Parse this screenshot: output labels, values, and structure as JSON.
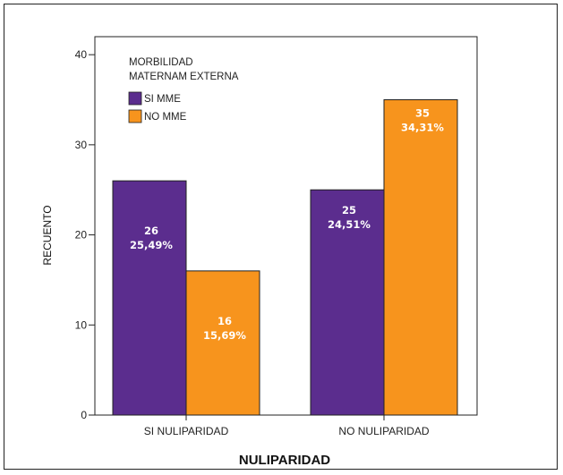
{
  "chart_data": {
    "type": "bar",
    "xlabel": "NULIPARIDAD",
    "ylabel": "RECUENTO",
    "ylim": [
      0,
      40
    ],
    "yticks": [
      0,
      10,
      20,
      30,
      40
    ],
    "grid": false,
    "categories": [
      "SI NULIPARIDAD",
      "NO NULIPARIDAD"
    ],
    "legend": {
      "title_line1": "MORBILIDAD",
      "title_line2": "MATERNAM EXTERNA",
      "placement": "top-left"
    },
    "series": [
      {
        "name": "SI MME",
        "color": "#5b2d8e",
        "values": [
          26,
          25
        ],
        "labels": [
          "26",
          "25"
        ],
        "percent_labels": [
          "25,49%",
          "24,51%"
        ]
      },
      {
        "name": "NO MME",
        "color": "#f7941d",
        "values": [
          16,
          35
        ],
        "labels": [
          "16",
          "35"
        ],
        "percent_labels": [
          "15,69%",
          "34,31%"
        ]
      }
    ]
  }
}
